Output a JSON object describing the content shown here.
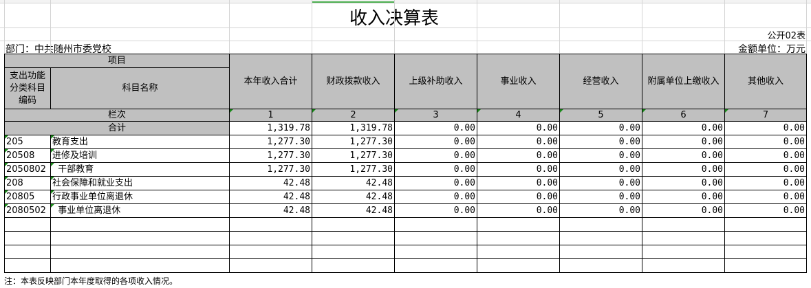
{
  "title": "收入决算表",
  "table_no": "公开02表",
  "department": "部门：中共随州市委党校",
  "unit": "金额单位：万元",
  "header": {
    "item": "项目",
    "code": "支出功能分类科目编码",
    "name": "科目名称",
    "columns": [
      "本年收入合计",
      "财政拨款收入",
      "上级补助收入",
      "事业收入",
      "经营收入",
      "附属单位上缴收入",
      "其他收入"
    ],
    "row_label": "栏次",
    "col_numbers": [
      "1",
      "2",
      "3",
      "4",
      "5",
      "6",
      "7"
    ]
  },
  "total": {
    "label": "合计",
    "values": [
      "1,319.78",
      "1,319.78",
      "0.00",
      "0.00",
      "0.00",
      "0.00",
      "0.00"
    ]
  },
  "rows": [
    {
      "code": "205",
      "name": "教育支出",
      "values": [
        "1,277.30",
        "1,277.30",
        "0.00",
        "0.00",
        "0.00",
        "0.00",
        "0.00"
      ]
    },
    {
      "code": "20508",
      "name": "进修及培训",
      "values": [
        "1,277.30",
        "1,277.30",
        "0.00",
        "0.00",
        "0.00",
        "0.00",
        "0.00"
      ]
    },
    {
      "code": "2050802",
      "name": "  干部教育",
      "values": [
        "1,277.30",
        "1,277.30",
        "0.00",
        "0.00",
        "0.00",
        "0.00",
        "0.00"
      ]
    },
    {
      "code": "208",
      "name": "社会保障和就业支出",
      "values": [
        "42.48",
        "42.48",
        "0.00",
        "0.00",
        "0.00",
        "0.00",
        "0.00"
      ]
    },
    {
      "code": "20805",
      "name": "行政事业单位离退休",
      "values": [
        "42.48",
        "42.48",
        "0.00",
        "0.00",
        "0.00",
        "0.00",
        "0.00"
      ]
    },
    {
      "code": "2080502",
      "name": "  事业单位离退休",
      "values": [
        "42.48",
        "42.48",
        "0.00",
        "0.00",
        "0.00",
        "0.00",
        "0.00"
      ]
    }
  ],
  "empty_rows": 4,
  "footer": "注：本表反映部门本年度取得的各项收入情况。",
  "colors": {
    "header_bg": "#c0c0c0",
    "marker": "#1a8a1a",
    "selection": "#4caf50"
  }
}
